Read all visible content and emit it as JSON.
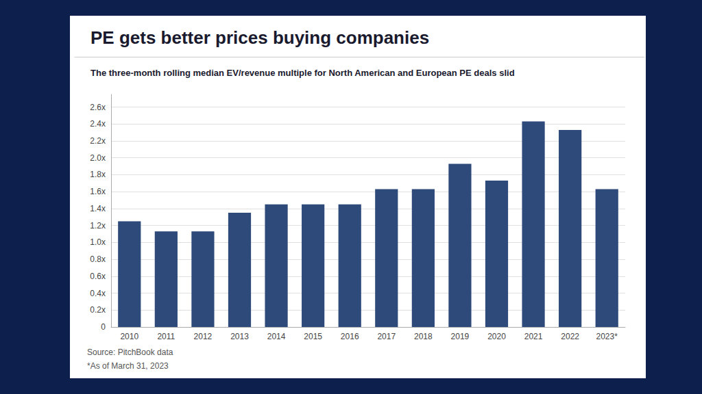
{
  "chart_data": {
    "type": "bar",
    "title": "PE gets better prices buying companies",
    "subtitle": "The three-month rolling median EV/revenue multiple for North American and European PE deals slid",
    "categories": [
      "2010",
      "2011",
      "2012",
      "2013",
      "2014",
      "2015",
      "2016",
      "2017",
      "2018",
      "2019",
      "2020",
      "2021",
      "2022",
      "2023*"
    ],
    "values": [
      1.25,
      1.13,
      1.13,
      1.35,
      1.45,
      1.45,
      1.45,
      1.63,
      1.63,
      1.93,
      1.73,
      2.43,
      2.33,
      1.63
    ],
    "color": "#2d4a7a",
    "ylim": [
      0,
      2.75
    ],
    "yticks": [
      0,
      {
        "value": 0.2,
        "label": "0.2x"
      },
      {
        "value": 0.4,
        "label": "0.4x"
      },
      {
        "value": 0.6,
        "label": "0.6x"
      },
      {
        "value": 0.8,
        "label": "0.8x"
      },
      {
        "value": 1.0,
        "label": "1.0x"
      },
      {
        "value": 1.2,
        "label": "1.2x"
      },
      {
        "value": 1.4,
        "label": "1.4x"
      },
      {
        "value": 1.6,
        "label": "1.6x"
      },
      {
        "value": 1.8,
        "label": "1.8x"
      },
      {
        "value": 2.0,
        "label": "2.0x"
      },
      {
        "value": 2.2,
        "label": "2.2x"
      },
      {
        "value": 2.4,
        "label": "2.4x"
      },
      {
        "value": 2.6,
        "label": "2.6x"
      }
    ],
    "grid": true,
    "annotations": [
      "Source: PitchBook data",
      "*As of March 31, 2023"
    ]
  }
}
